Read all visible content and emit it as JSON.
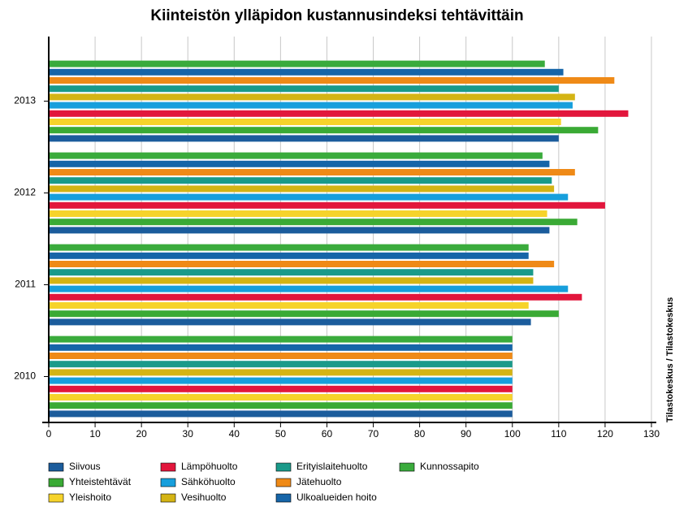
{
  "chart_data": {
    "type": "hbar",
    "title": "Kiinteistön ylläpidon kustannusindeksi tehtävittäin",
    "source": "Tilastokeskus / Tilastokeskus",
    "categories": [
      "2013",
      "2012",
      "2011",
      "2010"
    ],
    "series": [
      {
        "name": "Siivous",
        "color": "#1b5c9c",
        "values": [
          110,
          108,
          104,
          100
        ]
      },
      {
        "name": "Yhteistehtävät",
        "color": "#3aaa35",
        "values": [
          118.5,
          114,
          110,
          100
        ]
      },
      {
        "name": "Yleishoito",
        "color": "#f6d32b",
        "values": [
          110.5,
          107.5,
          103.5,
          100
        ]
      },
      {
        "name": "Lämpöhuolto",
        "color": "#e2163c",
        "values": [
          125,
          120,
          115,
          100
        ]
      },
      {
        "name": "Sähköhuolto",
        "color": "#179fdc",
        "values": [
          113,
          112,
          112,
          100
        ]
      },
      {
        "name": "Vesihuolto",
        "color": "#d4b414",
        "values": [
          113.5,
          109,
          104.5,
          100
        ]
      },
      {
        "name": "Erityislaitehuolto",
        "color": "#1a9a8a",
        "values": [
          110,
          108.5,
          104.5,
          100
        ]
      },
      {
        "name": "Jätehuolto",
        "color": "#ef8a17",
        "values": [
          122,
          113.5,
          109,
          100
        ]
      },
      {
        "name": "Ulkoalueiden hoito",
        "color": "#1665a8",
        "values": [
          111,
          108,
          103.5,
          100
        ]
      },
      {
        "name": "Kunnossapito",
        "color": "#3aab3c",
        "values": [
          107,
          106.5,
          103.5,
          100
        ]
      }
    ],
    "xlim": [
      0,
      130
    ],
    "xticks": [
      0,
      10,
      20,
      30,
      40,
      50,
      60,
      70,
      80,
      90,
      100,
      110,
      120,
      130
    ],
    "grid": true
  }
}
